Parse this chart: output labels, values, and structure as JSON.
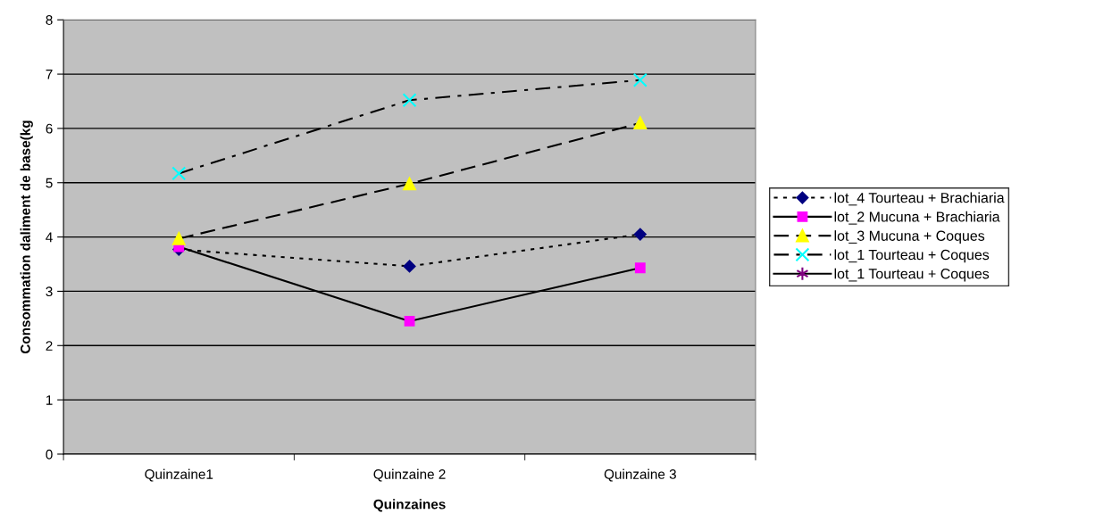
{
  "chart_data": {
    "type": "line",
    "xlabel": "Quinzaines",
    "ylabel": "Consommation daliment de base(kg",
    "categories": [
      "Quinzaine1",
      "Quinzaine 2",
      "Quinzaine 3"
    ],
    "ylim": [
      0,
      8
    ],
    "yticks": [
      0,
      1,
      2,
      3,
      4,
      5,
      6,
      7,
      8
    ],
    "grid": "y",
    "legend": "right",
    "series": [
      {
        "name": "lot_4 Tourteau + Brachiaria",
        "color": "#000080",
        "marker": "diamond",
        "line_style": "dotted",
        "values": [
          3.77,
          3.46,
          4.05
        ]
      },
      {
        "name": "lot_2 Mucuna + Brachiaria",
        "color": "#ff00ff",
        "marker": "square",
        "line_style": "solid",
        "values": [
          3.82,
          2.45,
          3.43
        ]
      },
      {
        "name": "lot_3 Mucuna + Coques",
        "color": "#ffff00",
        "marker": "triangle",
        "line_style": "dashed",
        "values": [
          3.97,
          4.98,
          6.1
        ]
      },
      {
        "name": "lot_1 Tourteau + Coques",
        "color": "#00ffff",
        "marker": "cross",
        "line_style": "dashdot",
        "values": [
          5.17,
          6.52,
          6.89
        ]
      },
      {
        "name": "lot_1 Tourteau + Coques",
        "color": "#800080",
        "marker": "star",
        "line_style": "solid",
        "values": [
          null,
          null,
          null
        ]
      }
    ]
  }
}
